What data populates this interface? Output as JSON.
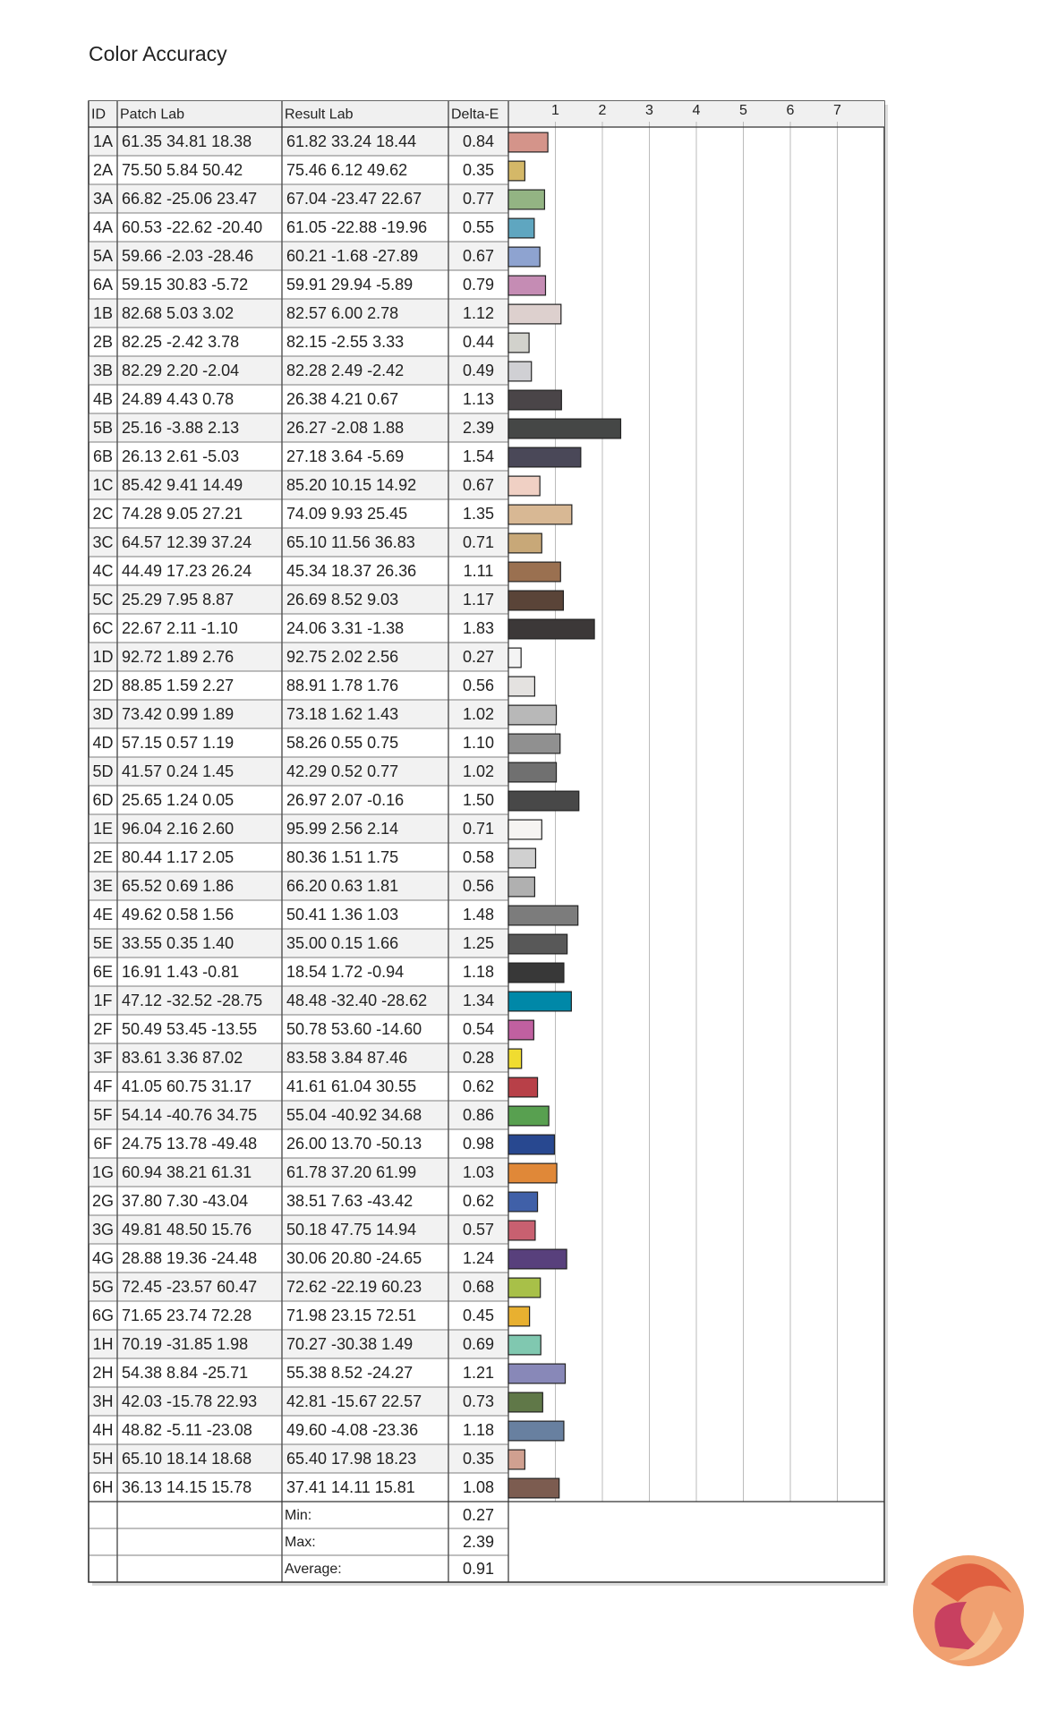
{
  "chart_data": {
    "type": "bar",
    "title": "Color Accuracy",
    "columns": [
      "ID",
      "Patch Lab",
      "Result Lab",
      "Delta-E"
    ],
    "categories": [
      "1A",
      "2A",
      "3A",
      "4A",
      "5A",
      "6A",
      "1B",
      "2B",
      "3B",
      "4B",
      "5B",
      "6B",
      "1C",
      "2C",
      "3C",
      "4C",
      "5C",
      "6C",
      "1D",
      "2D",
      "3D",
      "4D",
      "5D",
      "6D",
      "1E",
      "2E",
      "3E",
      "4E",
      "5E",
      "6E",
      "1F",
      "2F",
      "3F",
      "4F",
      "5F",
      "6F",
      "1G",
      "2G",
      "3G",
      "4G",
      "5G",
      "6G",
      "1H",
      "2H",
      "3H",
      "4H",
      "5H",
      "6H"
    ],
    "patch_lab": [
      "61.35 34.81 18.38",
      "75.50 5.84 50.42",
      "66.82 -25.06 23.47",
      "60.53 -22.62 -20.40",
      "59.66 -2.03 -28.46",
      "59.15 30.83 -5.72",
      "82.68 5.03 3.02",
      "82.25 -2.42 3.78",
      "82.29 2.20 -2.04",
      "24.89 4.43 0.78",
      "25.16 -3.88 2.13",
      "26.13 2.61 -5.03",
      "85.42 9.41 14.49",
      "74.28 9.05 27.21",
      "64.57 12.39 37.24",
      "44.49 17.23 26.24",
      "25.29 7.95 8.87",
      "22.67 2.11 -1.10",
      "92.72 1.89 2.76",
      "88.85 1.59 2.27",
      "73.42 0.99 1.89",
      "57.15 0.57 1.19",
      "41.57 0.24 1.45",
      "25.65 1.24 0.05",
      "96.04 2.16 2.60",
      "80.44 1.17 2.05",
      "65.52 0.69 1.86",
      "49.62 0.58 1.56",
      "33.55 0.35 1.40",
      "16.91 1.43 -0.81",
      "47.12 -32.52 -28.75",
      "50.49 53.45 -13.55",
      "83.61 3.36 87.02",
      "41.05 60.75 31.17",
      "54.14 -40.76 34.75",
      "24.75 13.78 -49.48",
      "60.94 38.21 61.31",
      "37.80 7.30 -43.04",
      "49.81 48.50 15.76",
      "28.88 19.36 -24.48",
      "72.45 -23.57 60.47",
      "71.65 23.74 72.28",
      "70.19 -31.85 1.98",
      "54.38 8.84 -25.71",
      "42.03 -15.78 22.93",
      "48.82 -5.11 -23.08",
      "65.10 18.14 18.68",
      "36.13 14.15 15.78"
    ],
    "result_lab": [
      "61.82 33.24 18.44",
      "75.46 6.12 49.62",
      "67.04 -23.47 22.67",
      "61.05 -22.88 -19.96",
      "60.21 -1.68 -27.89",
      "59.91 29.94 -5.89",
      "82.57 6.00 2.78",
      "82.15 -2.55 3.33",
      "82.28 2.49 -2.42",
      "26.38 4.21 0.67",
      "26.27 -2.08 1.88",
      "27.18 3.64 -5.69",
      "85.20 10.15 14.92",
      "74.09 9.93 25.45",
      "65.10 11.56 36.83",
      "45.34 18.37 26.36",
      "26.69 8.52 9.03",
      "24.06 3.31 -1.38",
      "92.75 2.02 2.56",
      "88.91 1.78 1.76",
      "73.18 1.62 1.43",
      "58.26 0.55 0.75",
      "42.29 0.52 0.77",
      "26.97 2.07 -0.16",
      "95.99 2.56 2.14",
      "80.36 1.51 1.75",
      "66.20 0.63 1.81",
      "50.41 1.36 1.03",
      "35.00 0.15 1.66",
      "18.54 1.72 -0.94",
      "48.48 -32.40 -28.62",
      "50.78 53.60 -14.60",
      "83.58 3.84 87.46",
      "41.61 61.04 30.55",
      "55.04 -40.92 34.68",
      "26.00 13.70 -50.13",
      "61.78 37.20 61.99",
      "38.51 7.63 -43.42",
      "50.18 47.75 14.94",
      "30.06 20.80 -24.65",
      "72.62 -22.19 60.23",
      "71.98 23.15 72.51",
      "70.27 -30.38 1.49",
      "55.38 8.52 -24.27",
      "42.81 -15.67 22.57",
      "49.60 -4.08 -23.36",
      "65.40 17.98 18.23",
      "37.41 14.11 15.81"
    ],
    "values": [
      0.84,
      0.35,
      0.77,
      0.55,
      0.67,
      0.79,
      1.12,
      0.44,
      0.49,
      1.13,
      2.39,
      1.54,
      0.67,
      1.35,
      0.71,
      1.11,
      1.17,
      1.83,
      0.27,
      0.56,
      1.02,
      1.1,
      1.02,
      1.5,
      0.71,
      0.58,
      0.56,
      1.48,
      1.25,
      1.18,
      1.34,
      0.54,
      0.28,
      0.62,
      0.86,
      0.98,
      1.03,
      0.62,
      0.57,
      1.24,
      0.68,
      0.45,
      0.69,
      1.21,
      0.73,
      1.18,
      0.35,
      1.08
    ],
    "value_labels": [
      "0.84",
      "0.35",
      "0.77",
      "0.55",
      "0.67",
      "0.79",
      "1.12",
      "0.44",
      "0.49",
      "1.13",
      "2.39",
      "1.54",
      "0.67",
      "1.35",
      "0.71",
      "1.11",
      "1.17",
      "1.83",
      "0.27",
      "0.56",
      "1.02",
      "1.10",
      "1.02",
      "1.50",
      "0.71",
      "0.58",
      "0.56",
      "1.48",
      "1.25",
      "1.18",
      "1.34",
      "0.54",
      "0.28",
      "0.62",
      "0.86",
      "0.98",
      "1.03",
      "0.62",
      "0.57",
      "1.24",
      "0.68",
      "0.45",
      "0.69",
      "1.21",
      "0.73",
      "1.18",
      "0.35",
      "1.08"
    ],
    "colors": [
      "#d4948a",
      "#d4b868",
      "#93b483",
      "#5fa6c0",
      "#8ea3d0",
      "#c58cb4",
      "#ddd0ce",
      "#d2d2cc",
      "#d0d0d4",
      "#4a4548",
      "#454746",
      "#4a4858",
      "#f0d0c4",
      "#d8b894",
      "#c8a878",
      "#9a7050",
      "#5a4438",
      "#3c3838",
      "#f4f4f4",
      "#e4e2e0",
      "#b8b8b8",
      "#909090",
      "#707070",
      "#484848",
      "#f6f4f2",
      "#d0d0d0",
      "#b0b0b0",
      "#7c7c7c",
      "#585858",
      "#383838",
      "#0088a8",
      "#c060a0",
      "#f0dc30",
      "#b84048",
      "#58a050",
      "#284890",
      "#e08838",
      "#4060a8",
      "#c86070",
      "#58407c",
      "#a8c048",
      "#e8b030",
      "#80c8b0",
      "#8888b8",
      "#607848",
      "#6880a0",
      "#d0a090",
      "#7c5c50"
    ],
    "xlim": [
      0,
      8
    ],
    "xticks": [
      1,
      2,
      3,
      4,
      5,
      6,
      7
    ],
    "grid": true,
    "summary": [
      {
        "label": "Min:",
        "value": 0.27
      },
      {
        "label": "Max:",
        "value": 2.39
      },
      {
        "label": "Average:",
        "value": 0.91
      }
    ]
  }
}
